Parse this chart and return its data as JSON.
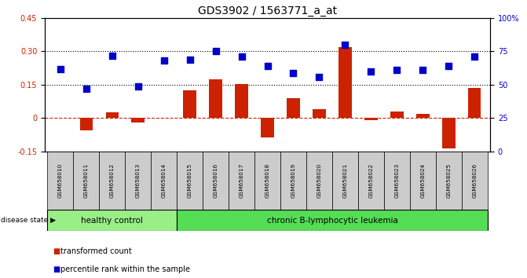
{
  "title": "GDS3902 / 1563771_a_at",
  "samples": [
    "GSM658010",
    "GSM658011",
    "GSM658012",
    "GSM658013",
    "GSM658014",
    "GSM658015",
    "GSM658016",
    "GSM658017",
    "GSM658018",
    "GSM658019",
    "GSM658020",
    "GSM658021",
    "GSM658022",
    "GSM658023",
    "GSM658024",
    "GSM658025",
    "GSM658026"
  ],
  "red_bars": [
    0.003,
    -0.055,
    0.025,
    -0.02,
    0.003,
    0.125,
    0.175,
    0.155,
    -0.085,
    0.09,
    0.04,
    0.32,
    -0.01,
    0.03,
    0.02,
    -0.135,
    0.135
  ],
  "blue_squares_pct": [
    62,
    47,
    72,
    49,
    68,
    69,
    75,
    71,
    64,
    59,
    56,
    80,
    60,
    61,
    61,
    64,
    71
  ],
  "red_color": "#cc2200",
  "blue_color": "#0000cc",
  "healthy_color": "#99ee88",
  "leukemia_color": "#55dd55",
  "sample_bg_color": "#cccccc",
  "healthy_count": 5,
  "leukemia_count": 12,
  "ylim_left": [
    -0.15,
    0.45
  ],
  "ylim_right": [
    0,
    100
  ],
  "yticks_left": [
    -0.15,
    0.0,
    0.15,
    0.3,
    0.45
  ],
  "ytick_labels_left": [
    "-0.15",
    "0",
    "0.15",
    "0.30",
    "0.45"
  ],
  "yticks_right": [
    0,
    25,
    50,
    75,
    100
  ],
  "ytick_labels_right": [
    "0",
    "25",
    "50",
    "75",
    "100%"
  ],
  "hlines": [
    0.15,
    0.3
  ],
  "disease_state_label": "disease state",
  "healthy_label": "healthy control",
  "leukemia_label": "chronic B-lymphocytic leukemia",
  "legend_red": "transformed count",
  "legend_blue": "percentile rank within the sample",
  "bar_width": 0.5,
  "blue_marker_size": 35
}
